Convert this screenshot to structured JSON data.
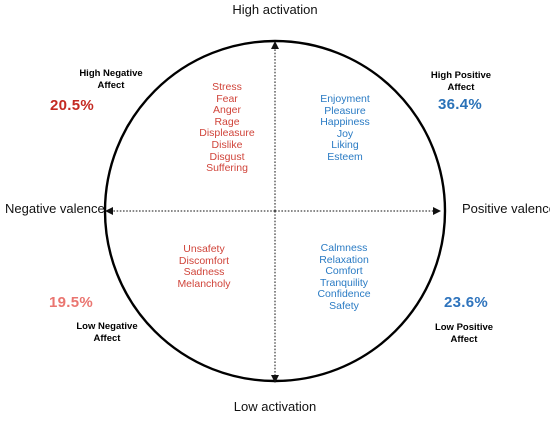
{
  "axes": {
    "top": "High activation",
    "bottom": "Low activation",
    "left": "Negative valence",
    "right": "Positive valence"
  },
  "quadrants": {
    "high_negative": {
      "title_line1": "High Negative",
      "title_line2": "Affect",
      "percent": "20.5%",
      "emotions": [
        "Stress",
        "Fear",
        "Anger",
        "Rage",
        "Displeasure",
        "Dislike",
        "Disgust",
        "Suffering"
      ]
    },
    "high_positive": {
      "title_line1": "High Positive",
      "title_line2": "Affect",
      "percent": "36.4%",
      "emotions": [
        "Enjoyment",
        "Pleasure",
        "Happiness",
        "Joy",
        "Liking",
        "Esteem"
      ]
    },
    "low_negative": {
      "title_line1": "Low Negative",
      "title_line2": "Affect",
      "percent": "19.5%",
      "emotions": [
        "Unsafety",
        "Discomfort",
        "Sadness",
        "Melancholy"
      ]
    },
    "low_positive": {
      "title_line1": "Low Positive",
      "title_line2": "Affect",
      "percent": "23.6%",
      "emotions": [
        "Calmness",
        "Relaxation",
        "Comfort",
        "Tranquility",
        "Confidence",
        "Safety"
      ]
    }
  },
  "colors": {
    "circle": "#000000",
    "axes": "#111111",
    "negative_text": "#d0443a",
    "positive_text": "#2a7bc4",
    "high_negative_percent": "#c42a22",
    "low_negative_percent": "#ea7570",
    "high_positive_percent": "#2a72b8",
    "low_positive_percent": "#2f74bd"
  }
}
